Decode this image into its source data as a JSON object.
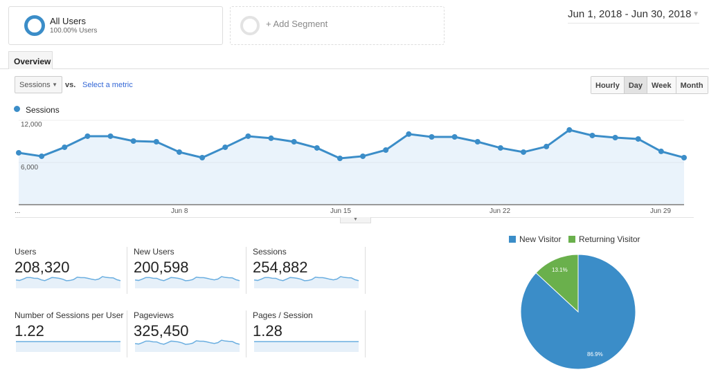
{
  "segments": [
    {
      "name": "All Users",
      "sub": "100.00% Users"
    },
    {
      "name": "+ Add Segment"
    }
  ],
  "date_range": "Jun 1, 2018 - Jun 30, 2018",
  "tabs": [
    {
      "label": "Overview"
    }
  ],
  "metric_selector": {
    "value": "Sessions",
    "vs": "vs.",
    "select_link": "Select a metric"
  },
  "granularity": {
    "options": [
      "Hourly",
      "Day",
      "Week",
      "Month"
    ],
    "selected": "Day"
  },
  "colors": {
    "accent": "#3b8dc8",
    "area": "#eaf3fb",
    "returning": "#6ab04c",
    "link": "#3367d6"
  },
  "chart_data": [
    {
      "type": "area",
      "legend": "Sessions",
      "yticks": [
        "12,000",
        "6,000"
      ],
      "ylim": [
        0,
        12000
      ],
      "xticks": [
        "...",
        "Jun 8",
        "Jun 15",
        "Jun 22",
        "Jun 29"
      ],
      "x": [
        "Jun 1",
        "Jun 2",
        "Jun 3",
        "Jun 4",
        "Jun 5",
        "Jun 6",
        "Jun 7",
        "Jun 8",
        "Jun 9",
        "Jun 10",
        "Jun 11",
        "Jun 12",
        "Jun 13",
        "Jun 14",
        "Jun 15",
        "Jun 16",
        "Jun 17",
        "Jun 18",
        "Jun 19",
        "Jun 20",
        "Jun 21",
        "Jun 22",
        "Jun 23",
        "Jun 24",
        "Jun 25",
        "Jun 26",
        "Jun 27",
        "Jun 28",
        "Jun 29",
        "Jun 30"
      ],
      "values": [
        7380,
        6890,
        8170,
        9740,
        9740,
        9050,
        8950,
        7480,
        6690,
        8170,
        9740,
        9450,
        8950,
        8070,
        6590,
        6890,
        7770,
        10040,
        9640,
        9640,
        8950,
        8070,
        7480,
        8270,
        10630,
        9840,
        9540,
        9350,
        7580,
        6690
      ]
    },
    {
      "type": "pie",
      "series": [
        {
          "name": "New Visitor",
          "value": 86.9,
          "label": "86.9%"
        },
        {
          "name": "Returning Visitor",
          "value": 13.1,
          "label": "13.1%"
        }
      ],
      "legend": "top"
    }
  ],
  "metrics": [
    {
      "label": "Users",
      "value": "208,320",
      "flat": false
    },
    {
      "label": "New Users",
      "value": "200,598",
      "flat": false
    },
    {
      "label": "Sessions",
      "value": "254,882",
      "flat": false
    },
    {
      "label": "Number of Sessions per User",
      "value": "1.22",
      "flat": true
    },
    {
      "label": "Pageviews",
      "value": "325,450",
      "flat": false
    },
    {
      "label": "Pages / Session",
      "value": "1.28",
      "flat": true
    }
  ]
}
